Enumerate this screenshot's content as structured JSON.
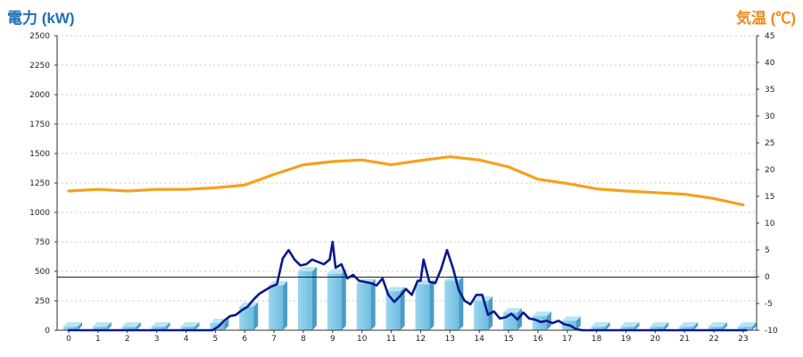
{
  "chart_data": {
    "type": "bar+line",
    "ylabel_left": "電力 (kW)",
    "ylabel_right": "気温 (℃)",
    "x_ticks": [
      "0",
      "1",
      "2",
      "3",
      "4",
      "5",
      "6",
      "7",
      "8",
      "9",
      "10",
      "11",
      "12",
      "13",
      "14",
      "15",
      "16",
      "17",
      "18",
      "19",
      "20",
      "21",
      "22",
      "23"
    ],
    "y_left_ticks": [
      "0",
      "250",
      "500",
      "750",
      "1000",
      "1250",
      "1500",
      "1750",
      "2000",
      "2250",
      "2500"
    ],
    "y_right_ticks": [
      "-10",
      "-5",
      "0",
      "5",
      "10",
      "15",
      "20",
      "25",
      "30",
      "35",
      "40",
      "45"
    ],
    "ylim_left": [
      0,
      2500
    ],
    "ylim_right": [
      -10,
      45
    ],
    "grid": true,
    "reference_line_left_value": 450,
    "colors": {
      "bars": "#7ec8e8",
      "power_line": "#0a1a8c",
      "temperature_line": "#f7a01c",
      "left_title": "#1f6fb6",
      "right_title": "#f08a1e"
    },
    "bars": {
      "hours": [
        0,
        1,
        2,
        3,
        4,
        5,
        6,
        7,
        8,
        9,
        10,
        11,
        12,
        13,
        14,
        15,
        16,
        17,
        18,
        19,
        20,
        21,
        22,
        23
      ],
      "values": [
        30,
        30,
        30,
        30,
        30,
        60,
        200,
        380,
        500,
        480,
        400,
        330,
        390,
        420,
        250,
        150,
        120,
        80,
        30,
        30,
        30,
        30,
        30,
        30
      ]
    },
    "power_line": {
      "x": [
        0,
        4.9,
        5.1,
        5.3,
        5.5,
        5.7,
        5.9,
        6.1,
        6.3,
        6.5,
        6.7,
        6.9,
        7.1,
        7.3,
        7.5,
        7.7,
        7.9,
        8.1,
        8.3,
        8.5,
        8.7,
        8.9,
        9.0,
        9.1,
        9.3,
        9.5,
        9.7,
        9.9,
        10.1,
        10.3,
        10.5,
        10.7,
        10.9,
        11.1,
        11.3,
        11.5,
        11.7,
        11.9,
        12.0,
        12.1,
        12.3,
        12.5,
        12.7,
        12.9,
        13.1,
        13.3,
        13.5,
        13.7,
        13.9,
        14.1,
        14.3,
        14.5,
        14.7,
        14.9,
        15.1,
        15.3,
        15.5,
        15.7,
        15.9,
        16.1,
        16.3,
        16.5,
        16.7,
        16.9,
        17.1,
        17.3,
        17.5,
        18,
        19,
        20,
        21,
        22,
        23.1
      ],
      "y": [
        0,
        0,
        30,
        80,
        120,
        130,
        170,
        200,
        260,
        310,
        340,
        370,
        390,
        610,
        680,
        600,
        550,
        560,
        600,
        580,
        560,
        600,
        750,
        530,
        560,
        440,
        470,
        420,
        410,
        400,
        380,
        440,
        300,
        240,
        290,
        350,
        300,
        420,
        420,
        600,
        410,
        400,
        520,
        680,
        530,
        340,
        250,
        220,
        300,
        300,
        130,
        160,
        100,
        110,
        140,
        90,
        150,
        100,
        90,
        70,
        80,
        60,
        80,
        50,
        40,
        10,
        0,
        0,
        0,
        0,
        0,
        0,
        0
      ]
    },
    "temperature_line": {
      "x": [
        0,
        1,
        2,
        3,
        4,
        5,
        6,
        7,
        8,
        9,
        10,
        11,
        12,
        13,
        14,
        15,
        16,
        17,
        18,
        19,
        20,
        21,
        22,
        23
      ],
      "y": [
        16,
        16.3,
        16,
        16.3,
        16.3,
        16.6,
        17.1,
        19.1,
        20.9,
        21.5,
        21.8,
        20.9,
        21.7,
        22.4,
        21.8,
        20.5,
        18.2,
        17.4,
        16.4,
        16,
        15.7,
        15.4,
        14.6,
        13.4
      ]
    }
  }
}
